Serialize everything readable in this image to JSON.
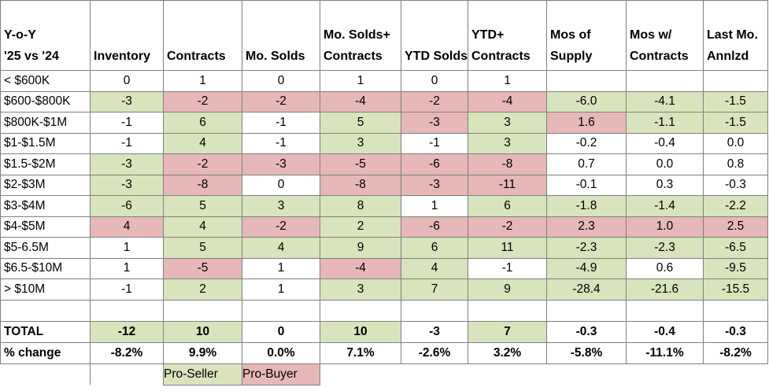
{
  "sheet": {
    "title_lines": [
      "Y-o-Y",
      "'25 vs '24"
    ],
    "columns": [
      "Inventory",
      "Contracts",
      "Mo. Solds",
      "Mo. Solds+ Contracts",
      "YTD Solds",
      "YTD+ Contracts",
      "Mos of Supply",
      "Mos w/ Contracts",
      "Last Mo. Annlzd"
    ],
    "rows": [
      {
        "label": "< $600K",
        "values": [
          "0",
          "1",
          "0",
          "1",
          "0",
          "1",
          "",
          "",
          ""
        ],
        "colors": [
          "",
          "",
          "",
          "",
          "",
          "",
          "",
          "",
          ""
        ]
      },
      {
        "label": "$600-$800K",
        "values": [
          "-3",
          "-2",
          "-2",
          "-4",
          "-2",
          "-4",
          "-6.0",
          "-4.1",
          "-1.5"
        ],
        "colors": [
          "g",
          "r",
          "r",
          "r",
          "r",
          "r",
          "g",
          "g",
          "g"
        ]
      },
      {
        "label": "$800K-$1M",
        "values": [
          "-1",
          "6",
          "-1",
          "5",
          "-3",
          "3",
          "1.6",
          "-1.1",
          "-1.5"
        ],
        "colors": [
          "",
          "g",
          "",
          "g",
          "r",
          "g",
          "r",
          "g",
          "g"
        ]
      },
      {
        "label": "$1-$1.5M",
        "values": [
          "-1",
          "4",
          "-1",
          "3",
          "-1",
          "3",
          "-0.2",
          "-0.4",
          "0.0"
        ],
        "colors": [
          "",
          "g",
          "",
          "g",
          "",
          "g",
          "",
          "",
          ""
        ]
      },
      {
        "label": "$1.5-$2M",
        "values": [
          "-3",
          "-2",
          "-3",
          "-5",
          "-6",
          "-8",
          "0.7",
          "0.0",
          "0.8"
        ],
        "colors": [
          "g",
          "r",
          "r",
          "r",
          "r",
          "r",
          "",
          "",
          ""
        ]
      },
      {
        "label": "$2-$3M",
        "values": [
          "-3",
          "-8",
          "0",
          "-8",
          "-3",
          "-11",
          "-0.1",
          "0.3",
          "-0.3"
        ],
        "colors": [
          "g",
          "r",
          "",
          "r",
          "r",
          "r",
          "",
          "",
          ""
        ]
      },
      {
        "label": "$3-$4M",
        "values": [
          "-6",
          "5",
          "3",
          "8",
          "1",
          "6",
          "-1.8",
          "-1.4",
          "-2.2"
        ],
        "colors": [
          "g",
          "g",
          "g",
          "g",
          "",
          "g",
          "g",
          "g",
          "g"
        ]
      },
      {
        "label": "$4-$5M",
        "values": [
          "4",
          "4",
          "-2",
          "2",
          "-6",
          "-2",
          "2.3",
          "1.0",
          "2.5"
        ],
        "colors": [
          "r",
          "g",
          "r",
          "g",
          "r",
          "r",
          "r",
          "r",
          "r"
        ]
      },
      {
        "label": "$5-6.5M",
        "values": [
          "1",
          "5",
          "4",
          "9",
          "6",
          "11",
          "-2.3",
          "-2.3",
          "-6.5"
        ],
        "colors": [
          "",
          "g",
          "g",
          "g",
          "g",
          "g",
          "g",
          "g",
          "g"
        ]
      },
      {
        "label": "$6.5-$10M",
        "values": [
          "1",
          "-5",
          "1",
          "-4",
          "4",
          "-1",
          "-4.9",
          "0.6",
          "-9.5"
        ],
        "colors": [
          "",
          "r",
          "",
          "r",
          "g",
          "",
          "g",
          "",
          "g"
        ]
      },
      {
        "label": "> $10M",
        "values": [
          "-1",
          "2",
          "1",
          "3",
          "7",
          "9",
          "-28.4",
          "-21.6",
          "-15.5"
        ],
        "colors": [
          "",
          "g",
          "",
          "g",
          "g",
          "g",
          "g",
          "g",
          "g"
        ]
      }
    ],
    "total": {
      "label": "TOTAL",
      "values": [
        "-12",
        "10",
        "0",
        "10",
        "-3",
        "7",
        "-0.3",
        "-0.4",
        "-0.3"
      ],
      "colors": [
        "g",
        "g",
        "",
        "g",
        "",
        "g",
        "",
        "",
        ""
      ]
    },
    "pct": {
      "label": "% change",
      "values": [
        "-8.2%",
        "9.9%",
        "0.0%",
        "7.1%",
        "-2.6%",
        "3.2%",
        "-5.8%",
        "-11.1%",
        "-8.2%"
      ]
    },
    "legend": {
      "pro_seller": "Pro-Seller",
      "pro_buyer": "Pro-Buyer"
    }
  },
  "colors": {
    "green": "#d8e4bc",
    "red": "#e6b8b7",
    "border": "#7f7f7f"
  }
}
